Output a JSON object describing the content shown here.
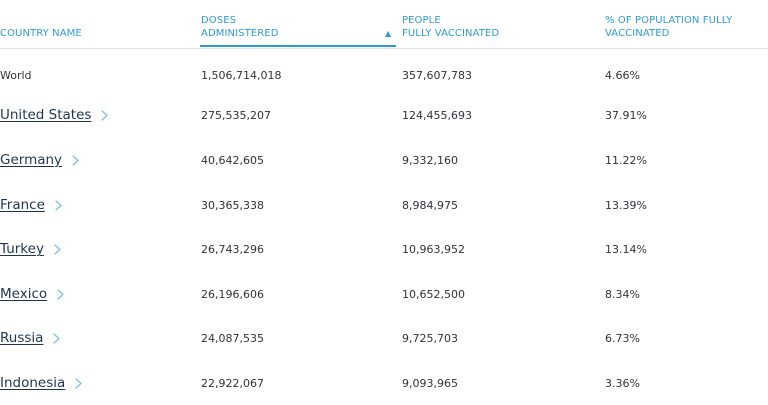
{
  "table": {
    "headers": {
      "country": [
        "COUNTRY NAME"
      ],
      "doses": [
        "DOSES",
        "ADMINISTERED"
      ],
      "people": [
        "PEOPLE",
        "FULLY VACCINATED"
      ],
      "pct": [
        "% OF POPULATION FULLY",
        "VACCINATED"
      ]
    },
    "sort": {
      "column": "doses",
      "direction": "descending",
      "arrow": "▲"
    },
    "rows": [
      {
        "country": "World",
        "doses": "1,506,714,018",
        "people": "357,607,783",
        "pct": "4.66%",
        "link": false
      },
      {
        "country": "United States",
        "doses": "275,535,207",
        "people": "124,455,693",
        "pct": "37.91%",
        "link": true
      },
      {
        "country": "Germany",
        "doses": "40,642,605",
        "people": "9,332,160",
        "pct": "11.22%",
        "link": true
      },
      {
        "country": "France",
        "doses": "30,365,338",
        "people": "8,984,975",
        "pct": "13.39%",
        "link": true
      },
      {
        "country": "Turkey",
        "doses": "26,743,296",
        "people": "10,963,952",
        "pct": "13.14%",
        "link": true
      },
      {
        "country": "Mexico",
        "doses": "26,196,606",
        "people": "10,652,500",
        "pct": "8.34%",
        "link": true
      },
      {
        "country": "Russia",
        "doses": "24,087,535",
        "people": "9,725,703",
        "pct": "6.73%",
        "link": true
      },
      {
        "country": "Indonesia",
        "doses": "22,922,067",
        "people": "9,093,965",
        "pct": "3.36%",
        "link": true
      }
    ],
    "colors": {
      "header": "#2e9bd6",
      "link": "#1f3555",
      "chevron": "#7cc0ea",
      "text": "#2f3338"
    },
    "chevron_icon": "chevron-right-icon"
  }
}
